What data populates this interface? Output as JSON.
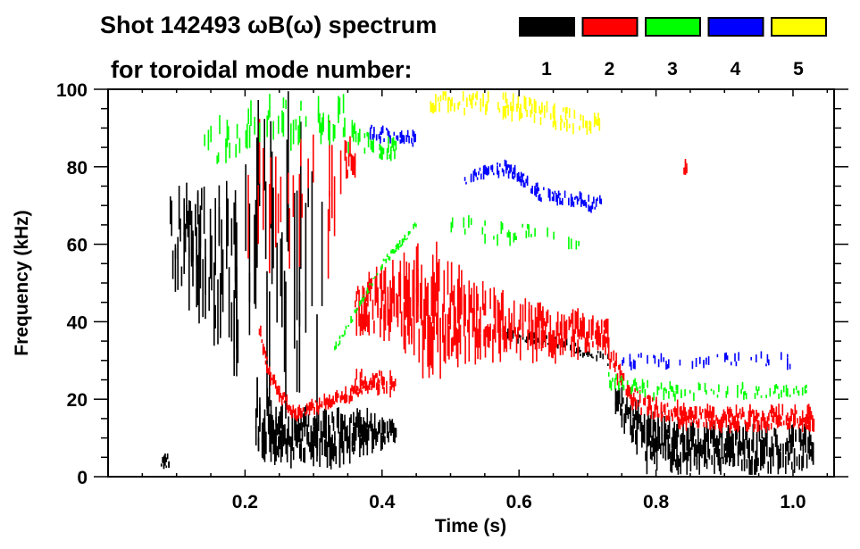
{
  "chart_data": {
    "type": "heatmap",
    "title": "Shot 142493 ωB(ω) spectrum",
    "legend_title": "for toroidal mode number:",
    "legend_placement": "top-right",
    "xlabel": "Time (s)",
    "ylabel": "Frequency (kHz)",
    "xlim": [
      0.0,
      1.06
    ],
    "ylim": [
      0,
      100
    ],
    "xticks": [
      0.2,
      0.4,
      0.6,
      0.8,
      1.0
    ],
    "xtick_labels": [
      "0.2",
      "0.4",
      "0.6",
      "0.8",
      "1.0"
    ],
    "yticks": [
      0,
      20,
      40,
      60,
      80,
      100
    ],
    "ytick_labels": [
      "0",
      "20",
      "40",
      "60",
      "80",
      "100"
    ],
    "legend": [
      {
        "label": "1",
        "color": "#000000"
      },
      {
        "label": "2",
        "color": "#ff0000"
      },
      {
        "label": "3",
        "color": "#00ff00"
      },
      {
        "label": "4",
        "color": "#0000ff"
      },
      {
        "label": "5",
        "color": "#ffff00"
      }
    ],
    "series": [
      {
        "mode": 1,
        "color": "#000000",
        "bands": [
          {
            "density": 0.9,
            "points": [
              [
                0.075,
                4,
                2
              ],
              [
                0.088,
                4,
                2
              ]
            ]
          },
          {
            "density": 0.6,
            "points": [
              [
                0.09,
                62,
                9
              ],
              [
                0.12,
                60,
                15
              ],
              [
                0.16,
                56,
                20
              ],
              [
                0.19,
                50,
                24
              ]
            ]
          },
          {
            "density": 0.3,
            "points": [
              [
                0.2,
                55,
                35
              ],
              [
                0.26,
                55,
                40
              ],
              [
                0.32,
                45,
                30
              ]
            ]
          },
          {
            "density": 0.9,
            "points": [
              [
                0.215,
                15,
                10
              ],
              [
                0.25,
                11,
                7
              ],
              [
                0.3,
                10,
                7
              ],
              [
                0.35,
                11,
                6
              ],
              [
                0.42,
                12,
                3
              ]
            ]
          },
          {
            "density": 0.6,
            "points": [
              [
                0.57,
                37,
                1.5
              ],
              [
                0.65,
                35,
                1.5
              ],
              [
                0.73,
                30,
                1.5
              ]
            ]
          },
          {
            "density": 0.9,
            "points": [
              [
                0.74,
                20,
                4
              ],
              [
                0.78,
                10,
                7
              ],
              [
                0.85,
                7,
                6
              ],
              [
                0.95,
                7,
                6
              ],
              [
                1.03,
                7,
                5
              ]
            ]
          }
        ]
      },
      {
        "mode": 2,
        "color": "#ff0000",
        "bands": [
          {
            "density": 0.85,
            "points": [
              [
                0.22,
                38,
                2
              ],
              [
                0.235,
                26,
                2
              ],
              [
                0.27,
                16,
                2
              ],
              [
                0.3,
                18,
                2
              ],
              [
                0.35,
                21,
                2
              ],
              [
                0.4,
                26,
                2
              ]
            ]
          },
          {
            "density": 0.15,
            "points": [
              [
                0.2,
                75,
                20
              ],
              [
                0.34,
                75,
                20
              ]
            ]
          },
          {
            "density": 0.95,
            "points": [
              [
                0.345,
                82,
                5
              ],
              [
                0.36,
                82,
                5
              ]
            ]
          },
          {
            "density": 0.8,
            "points": [
              [
                0.36,
                44,
                6
              ],
              [
                0.42,
                45,
                10
              ],
              [
                0.47,
                42,
                15
              ],
              [
                0.55,
                40,
                8
              ],
              [
                0.65,
                37,
                6
              ],
              [
                0.73,
                36,
                4
              ]
            ]
          },
          {
            "density": 0.6,
            "points": [
              [
                0.36,
                25,
                3
              ],
              [
                0.42,
                24,
                3
              ]
            ]
          },
          {
            "density": 0.9,
            "points": [
              [
                0.73,
                32,
                3
              ],
              [
                0.76,
                21,
                3
              ],
              [
                0.8,
                17,
                3
              ],
              [
                0.85,
                15,
                3
              ],
              [
                1.03,
                15,
                3
              ]
            ]
          },
          {
            "density": 0.95,
            "points": [
              [
                0.84,
                80,
                2
              ],
              [
                0.845,
                80,
                2
              ]
            ]
          }
        ]
      },
      {
        "mode": 3,
        "color": "#00ff00",
        "bands": [
          {
            "density": 0.3,
            "points": [
              [
                0.14,
                85,
                6
              ],
              [
                0.25,
                92,
                6
              ],
              [
                0.35,
                92,
                6
              ]
            ]
          },
          {
            "density": 0.45,
            "points": [
              [
                0.35,
                88,
                4
              ],
              [
                0.42,
                84,
                3
              ]
            ]
          },
          {
            "density": 0.6,
            "points": [
              [
                0.33,
                33,
                1
              ],
              [
                0.4,
                55,
                1
              ],
              [
                0.45,
                65,
                1
              ]
            ]
          },
          {
            "density": 0.2,
            "points": [
              [
                0.5,
                65,
                3
              ],
              [
                0.7,
                60,
                3
              ]
            ]
          },
          {
            "density": 0.35,
            "points": [
              [
                0.73,
                25,
                2
              ],
              [
                0.8,
                22,
                2
              ],
              [
                1.02,
                22,
                2
              ]
            ]
          }
        ]
      },
      {
        "mode": 4,
        "color": "#0000ff",
        "bands": [
          {
            "density": 0.6,
            "points": [
              [
                0.38,
                89,
                2
              ],
              [
                0.45,
                87,
                2
              ]
            ]
          },
          {
            "density": 0.5,
            "points": [
              [
                0.52,
                77,
                2
              ],
              [
                0.58,
                80,
                2
              ],
              [
                0.63,
                73,
                2
              ],
              [
                0.72,
                70,
                2
              ]
            ]
          },
          {
            "density": 0.2,
            "points": [
              [
                0.75,
                30,
                2
              ],
              [
                1.0,
                30,
                2
              ]
            ]
          }
        ]
      },
      {
        "mode": 5,
        "color": "#ffff00",
        "bands": [
          {
            "density": 0.4,
            "points": [
              [
                0.47,
                97,
                3
              ],
              [
                0.58,
                96,
                3
              ],
              [
                0.72,
                90,
                3
              ]
            ]
          }
        ]
      }
    ]
  }
}
